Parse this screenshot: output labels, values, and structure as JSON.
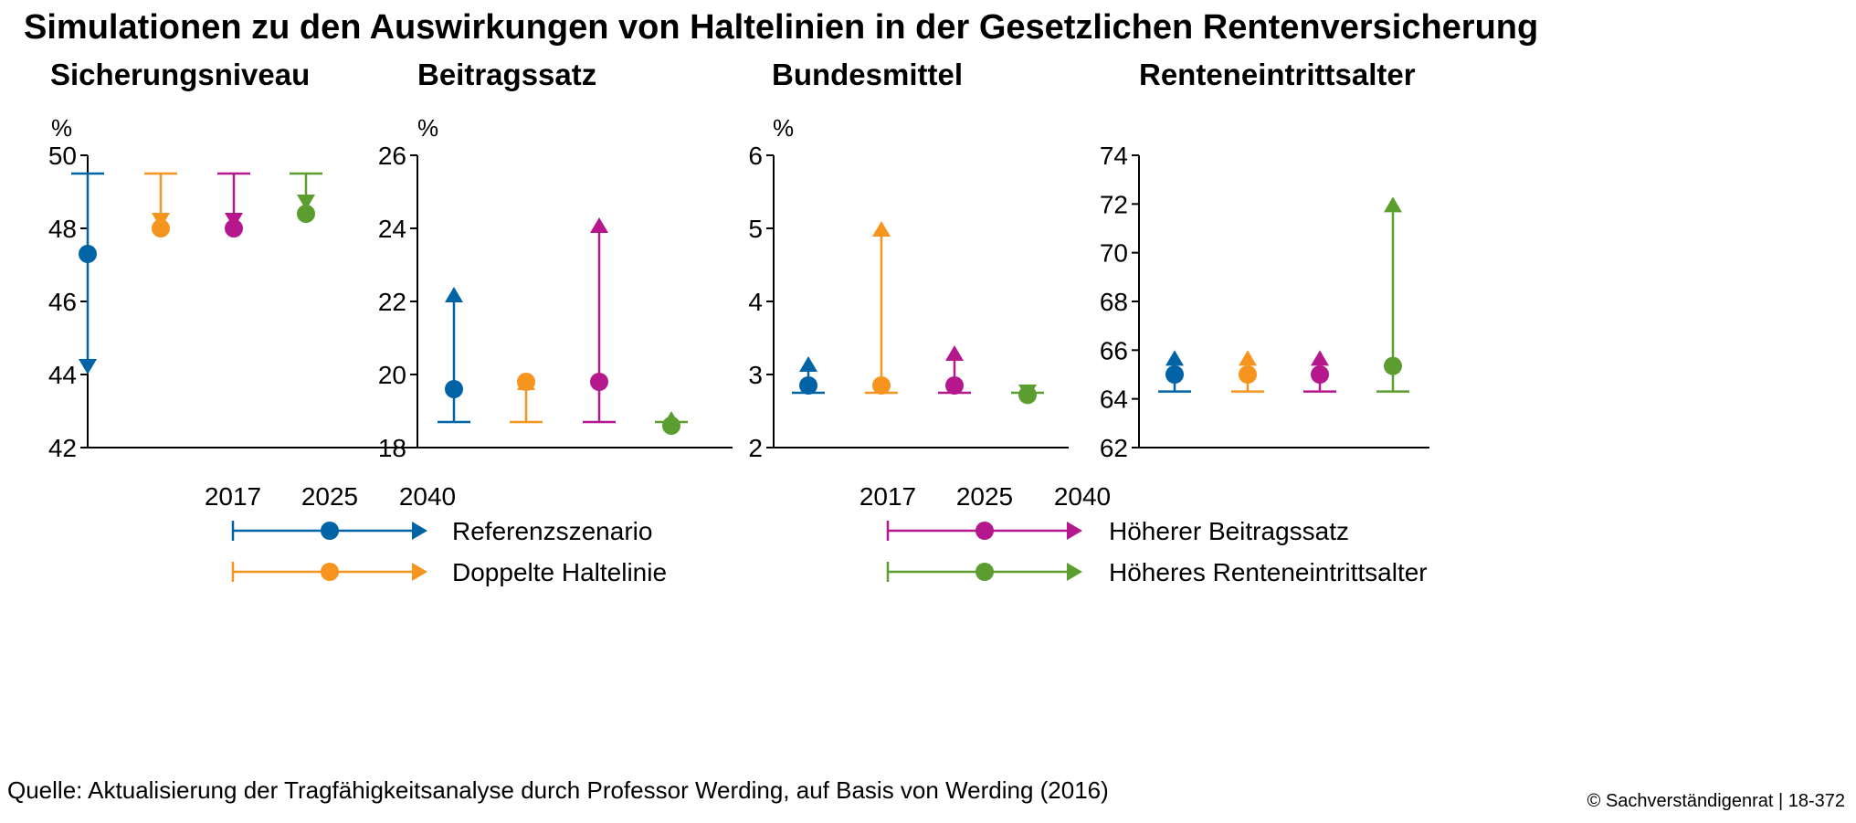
{
  "title": "Simulationen zu den Auswirkungen von Haltelinien in der Gesetzlichen Rentenversicherung",
  "source": "Quelle: Aktualisierung der Tragfähigkeitsanalyse durch Professor Werding, auf Basis von Werding (2016)",
  "copyright": "© Sachverständigenrat | 18-372",
  "legend": {
    "years": [
      "2017",
      "2025",
      "2040"
    ],
    "items": [
      {
        "label": "Referenzszenario",
        "color": "#0063a6"
      },
      {
        "label": "Doppelte Haltelinie",
        "color": "#f7941d"
      },
      {
        "label": "Höherer Beitragssatz",
        "color": "#b5178d"
      },
      {
        "label": "Höheres Renteneintrittsalter",
        "color": "#5b9e2f"
      }
    ]
  },
  "chart_data": [
    {
      "type": "range-dot",
      "title": "Sicherungsniveau",
      "unit": "%",
      "ylim": [
        42,
        50
      ],
      "yticks": [
        "42",
        "44",
        "46",
        "48",
        "50"
      ],
      "series": [
        {
          "name": "Referenzszenario",
          "y2017": 49.5,
          "y2025": 47.3,
          "y2040": 44.0
        },
        {
          "name": "Doppelte Haltelinie",
          "y2017": 49.5,
          "y2025": 48.0,
          "y2040": 48.0
        },
        {
          "name": "Höherer Beitragssatz",
          "y2017": 49.5,
          "y2025": 48.0,
          "y2040": 48.0
        },
        {
          "name": "Höheres Renteneintrittsalter",
          "y2017": 49.5,
          "y2025": 48.4,
          "y2040": 48.5
        }
      ]
    },
    {
      "type": "range-dot",
      "title": "Beitragssatz",
      "unit": "%",
      "ylim": [
        18,
        26
      ],
      "yticks": [
        "18",
        "20",
        "22",
        "24",
        "26"
      ],
      "series": [
        {
          "name": "Referenzszenario",
          "y2017": 18.7,
          "y2025": 19.6,
          "y2040": 22.4
        },
        {
          "name": "Doppelte Haltelinie",
          "y2017": 18.7,
          "y2025": 19.8,
          "y2040": 20.0
        },
        {
          "name": "Höherer Beitragssatz",
          "y2017": 18.7,
          "y2025": 19.8,
          "y2040": 24.3
        },
        {
          "name": "Höheres Renteneintrittsalter",
          "y2017": 18.7,
          "y2025": 18.6,
          "y2040": 19.0
        }
      ]
    },
    {
      "type": "range-dot",
      "title": "Bundesmittel",
      "unit": "%",
      "ylim": [
        2,
        6
      ],
      "yticks": [
        "2",
        "3",
        "4",
        "5",
        "6"
      ],
      "series": [
        {
          "name": "Referenzszenario",
          "y2017": 2.75,
          "y2025": 2.85,
          "y2040": 3.25
        },
        {
          "name": "Doppelte Haltelinie",
          "y2017": 2.75,
          "y2025": 2.85,
          "y2040": 5.1
        },
        {
          "name": "Höherer Beitragssatz",
          "y2017": 2.75,
          "y2025": 2.85,
          "y2040": 3.4
        },
        {
          "name": "Höheres Renteneintrittsalter",
          "y2017": 2.75,
          "y2025": 2.72,
          "y2040": 2.65
        }
      ]
    },
    {
      "type": "range-dot",
      "title": "Renteneintrittsalter",
      "unit": "",
      "ylim": [
        62,
        74
      ],
      "yticks": [
        "62",
        "64",
        "66",
        "68",
        "70",
        "72",
        "74"
      ],
      "series": [
        {
          "name": "Referenzszenario",
          "y2017": 64.3,
          "y2025": 65.0,
          "y2040": 66.0
        },
        {
          "name": "Doppelte Haltelinie",
          "y2017": 64.3,
          "y2025": 65.0,
          "y2040": 66.0
        },
        {
          "name": "Höherer Beitragssatz",
          "y2017": 64.3,
          "y2025": 65.0,
          "y2040": 66.0
        },
        {
          "name": "Höheres Renteneintrittsalter",
          "y2017": 64.3,
          "y2025": 65.35,
          "y2040": 72.3
        }
      ]
    }
  ]
}
